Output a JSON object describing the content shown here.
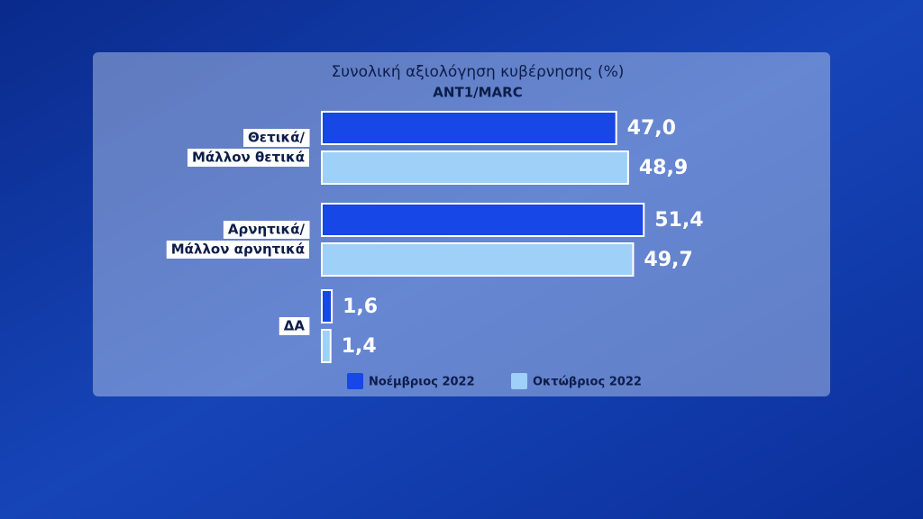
{
  "chart_data": {
    "type": "hbar",
    "title": "Συνολική αξιολόγηση κυβέρνησης (%)",
    "subtitle": "ANT1/MARC",
    "categories": [
      "Θετικά/\nΜάλλον θετικά",
      "Αρνητικά/\nΜάλλον αρνητικά",
      "ΔΑ"
    ],
    "series": [
      {
        "name": "Νοέμβριος 2022",
        "color": "#1747e6",
        "values": [
          47.0,
          51.4,
          1.6
        ],
        "value_labels": [
          "47,0",
          "51,4",
          "1,6"
        ]
      },
      {
        "name": "Οκτώβριος 2022",
        "color": "#9fd0f7",
        "values": [
          48.9,
          49.7,
          1.4
        ],
        "value_labels": [
          "48,9",
          "49,7",
          "1,4"
        ]
      }
    ]
  }
}
